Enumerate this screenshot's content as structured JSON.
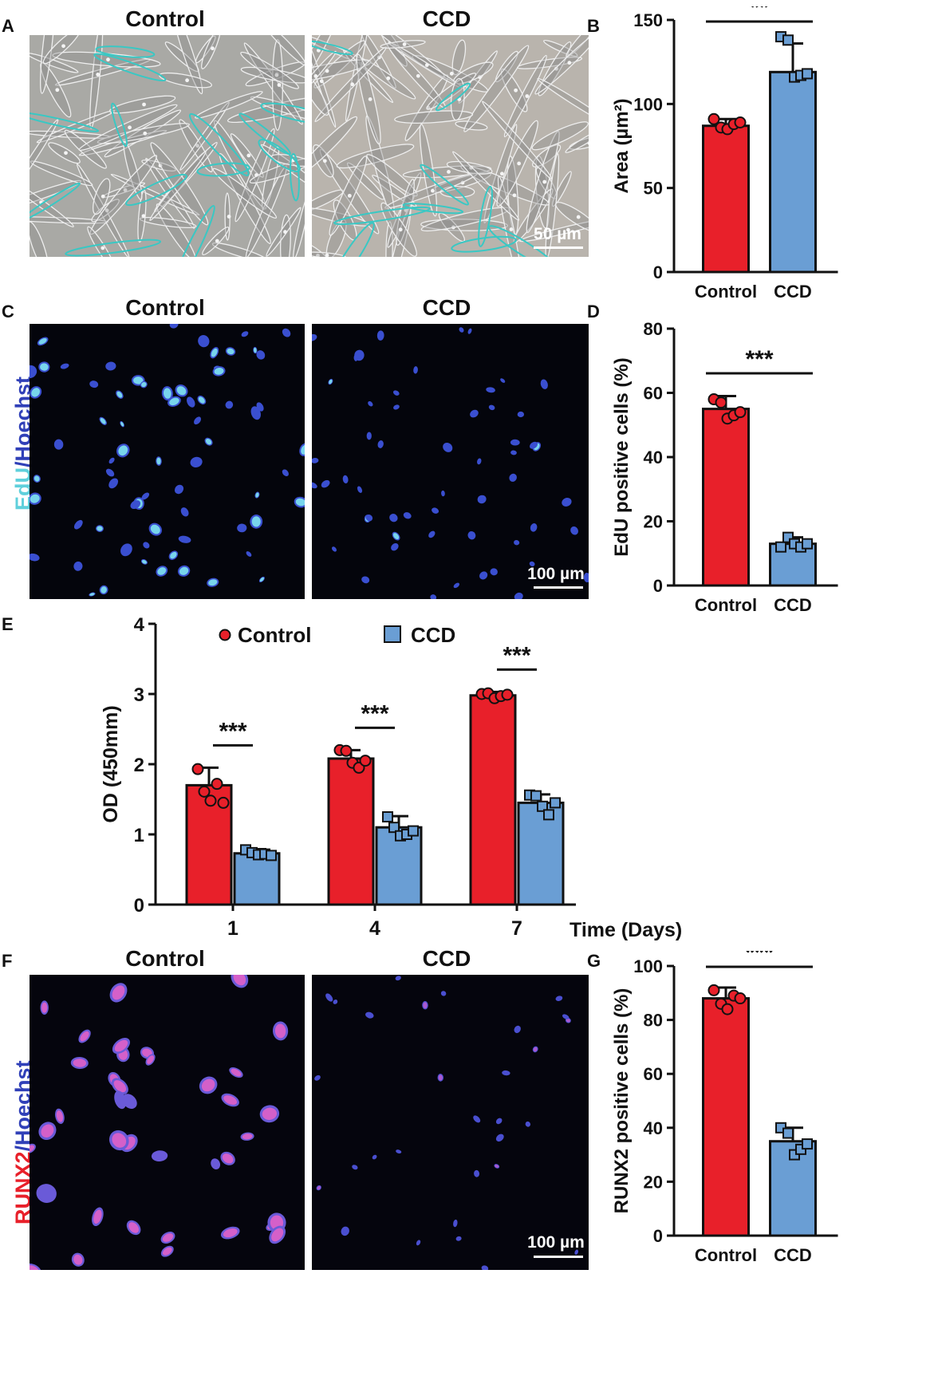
{
  "panels": {
    "a": {
      "letter": "A",
      "left_title": "Control",
      "right_title": "CCD",
      "scale": "50 µm"
    },
    "b": {
      "letter": "B"
    },
    "c": {
      "letter": "C",
      "left_title": "Control",
      "right_title": "CCD",
      "scale": "100 µm",
      "side_label_1": "EdU",
      "side_label_2": "/Hoechst"
    },
    "d": {
      "letter": "D"
    },
    "e": {
      "letter": "E"
    },
    "f": {
      "letter": "F",
      "left_title": "Control",
      "right_title": "CCD",
      "scale": "100 µm",
      "side_label_1": "RUNX2",
      "side_label_2": "/Hoechst"
    },
    "g": {
      "letter": "G"
    }
  },
  "colors": {
    "control": "#e8202a",
    "ccd": "#6a9ed4",
    "edu": "#5fd0dc",
    "hoechst": "#4a5ad0",
    "runx2": "#e8202a"
  },
  "chart_data": [
    {
      "id": "B",
      "type": "bar",
      "categories": [
        "Control",
        "CCD"
      ],
      "values": [
        87,
        119
      ],
      "errors": [
        4,
        17
      ],
      "points": [
        [
          91,
          86,
          85,
          88,
          89
        ],
        [
          140,
          138,
          116,
          117,
          118
        ]
      ],
      "ylabel": "Area (µm²)",
      "ylim": [
        0,
        150
      ],
      "yticks": [
        0,
        50,
        100,
        150
      ],
      "significance": "**"
    },
    {
      "id": "D",
      "type": "bar",
      "categories": [
        "Control",
        "CCD"
      ],
      "values": [
        55,
        13
      ],
      "errors": [
        4,
        2
      ],
      "points": [
        [
          58,
          57,
          52,
          53,
          54
        ],
        [
          12,
          15,
          13,
          12,
          13
        ]
      ],
      "ylabel": "EdU positive cells (%)",
      "ylim": [
        0,
        80
      ],
      "yticks": [
        0,
        20,
        40,
        60,
        80
      ],
      "significance": "***"
    },
    {
      "id": "E",
      "type": "bar",
      "categories": [
        "1",
        "4",
        "7"
      ],
      "xlabel": "Time (Days)",
      "ylabel": "OD (450mm)",
      "ylim": [
        0,
        4
      ],
      "yticks": [
        0,
        1,
        2,
        3,
        4
      ],
      "series": [
        {
          "name": "Control",
          "values": [
            1.7,
            2.08,
            2.98
          ],
          "errors": [
            0.25,
            0.12,
            0.05
          ],
          "points": [
            [
              1.93,
              1.61,
              1.48,
              1.72,
              1.45
            ],
            [
              2.2,
              2.19,
              2.02,
              1.95,
              2.05
            ],
            [
              3.0,
              3.01,
              2.94,
              2.97,
              2.99
            ]
          ]
        },
        {
          "name": "CCD",
          "values": [
            0.73,
            1.1,
            1.45
          ],
          "errors": [
            0.06,
            0.16,
            0.12
          ],
          "points": [
            [
              0.78,
              0.74,
              0.71,
              0.72,
              0.7
            ],
            [
              1.25,
              1.1,
              0.98,
              1.0,
              1.05
            ],
            [
              1.56,
              1.55,
              1.4,
              1.28,
              1.45
            ]
          ]
        }
      ],
      "significance": [
        "***",
        "***",
        "***"
      ],
      "legend": "top"
    },
    {
      "id": "G",
      "type": "bar",
      "categories": [
        "Control",
        "CCD"
      ],
      "values": [
        88,
        35
      ],
      "errors": [
        4,
        5
      ],
      "points": [
        [
          91,
          86,
          84,
          89,
          88
        ],
        [
          40,
          38,
          30,
          32,
          34
        ]
      ],
      "ylabel": "RUNX2 positive cells (%)",
      "ylim": [
        0,
        100
      ],
      "yticks": [
        0,
        20,
        40,
        60,
        80,
        100
      ],
      "significance": "***"
    }
  ]
}
